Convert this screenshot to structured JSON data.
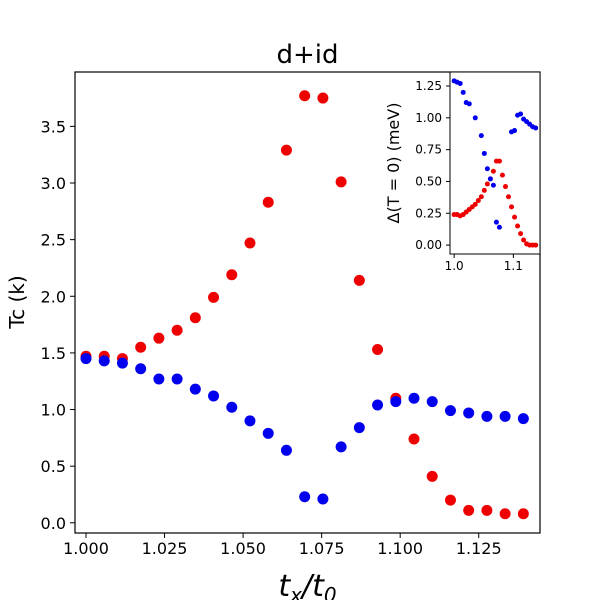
{
  "chart_data": [
    {
      "type": "scatter",
      "title": "d+id",
      "xlabel_main": "t",
      "xlabel_sub1": "x",
      "xlabel_sep": "/t",
      "xlabel_sub2": "0",
      "ylabel": "Tc (k)",
      "xlim": [
        0.9965,
        1.1445
      ],
      "ylim": [
        -0.09,
        3.98
      ],
      "xticks": [
        1.0,
        1.025,
        1.05,
        1.075,
        1.1,
        1.125
      ],
      "xtick_labels": [
        "1.000",
        "1.025",
        "1.050",
        "1.075",
        "1.100",
        "1.125"
      ],
      "yticks": [
        0.0,
        0.5,
        1.0,
        1.5,
        2.0,
        2.5,
        3.0,
        3.5
      ],
      "ytick_labels": [
        "0.0",
        "0.5",
        "1.0",
        "1.5",
        "2.0",
        "2.5",
        "3.0",
        "3.5"
      ],
      "series": [
        {
          "name": "red",
          "color": "#ee0000",
          "x": [
            1.0,
            1.0058,
            1.0116,
            1.0174,
            1.0232,
            1.029,
            1.0348,
            1.0406,
            1.0464,
            1.0522,
            1.058,
            1.0638,
            1.0696,
            1.0754,
            1.0812,
            1.087,
            1.0928,
            1.0986,
            1.1044,
            1.1102,
            1.116,
            1.1218,
            1.1276,
            1.1334,
            1.1392
          ],
          "y": [
            1.47,
            1.47,
            1.45,
            1.55,
            1.63,
            1.7,
            1.81,
            1.99,
            2.19,
            2.47,
            2.83,
            3.29,
            3.77,
            3.75,
            3.01,
            2.14,
            1.53,
            1.1,
            0.74,
            0.41,
            0.2,
            0.11,
            0.11,
            0.08,
            0.08
          ]
        },
        {
          "name": "blue",
          "color": "#0000ee",
          "x": [
            1.0,
            1.0058,
            1.0116,
            1.0174,
            1.0232,
            1.029,
            1.0348,
            1.0406,
            1.0464,
            1.0522,
            1.058,
            1.0638,
            1.0696,
            1.0754,
            1.0812,
            1.087,
            1.0928,
            1.0986,
            1.1044,
            1.1102,
            1.116,
            1.1218,
            1.1276,
            1.1334,
            1.1392
          ],
          "y": [
            1.45,
            1.43,
            1.41,
            1.36,
            1.27,
            1.27,
            1.18,
            1.12,
            1.02,
            0.9,
            0.79,
            0.64,
            0.23,
            0.21,
            0.67,
            0.84,
            1.04,
            1.07,
            1.1,
            1.07,
            0.99,
            0.97,
            0.94,
            0.94,
            0.92
          ]
        }
      ]
    },
    {
      "type": "scatter",
      "title": "",
      "ylabel": "Δ(T = 0) (meV)",
      "xlim": [
        0.993,
        1.145
      ],
      "ylim": [
        -0.07,
        1.36
      ],
      "xticks": [
        1.0,
        1.1
      ],
      "xtick_labels": [
        "1.0",
        "1.1"
      ],
      "yticks": [
        0.0,
        0.25,
        0.5,
        0.75,
        1.0,
        1.25
      ],
      "ytick_labels": [
        "0.00",
        "0.25",
        "0.50",
        "0.75",
        "1.00",
        "1.25"
      ],
      "series": [
        {
          "name": "red",
          "color": "#ee0000",
          "x": [
            1.0,
            1.0051,
            1.0102,
            1.0153,
            1.0204,
            1.0255,
            1.0306,
            1.0357,
            1.0408,
            1.0459,
            1.051,
            1.0561,
            1.0612,
            1.0663,
            1.0714,
            1.0765,
            1.0816,
            1.0867,
            1.0918,
            1.0969,
            1.102,
            1.1071,
            1.1122,
            1.1173,
            1.1224,
            1.1275,
            1.1326,
            1.1377
          ],
          "y": [
            0.24,
            0.24,
            0.23,
            0.24,
            0.26,
            0.28,
            0.3,
            0.32,
            0.35,
            0.38,
            0.43,
            0.48,
            0.52,
            0.58,
            0.66,
            0.66,
            0.55,
            0.46,
            0.38,
            0.3,
            0.22,
            0.15,
            0.09,
            0.04,
            0.01,
            0.0,
            0.0,
            0.0
          ]
        },
        {
          "name": "blue",
          "color": "#0000ee",
          "x": [
            1.0,
            1.0051,
            1.0102,
            1.0153,
            1.0204,
            1.0255,
            1.0357,
            1.0459,
            1.051,
            1.0561,
            1.0612,
            1.0663,
            1.0714,
            1.0765,
            1.0969,
            1.102,
            1.1071,
            1.1122,
            1.1173,
            1.1224,
            1.1275,
            1.1326,
            1.1377
          ],
          "y": [
            1.29,
            1.28,
            1.27,
            1.2,
            1.12,
            1.11,
            1.0,
            0.86,
            0.72,
            0.6,
            0.52,
            0.47,
            0.18,
            0.14,
            0.89,
            0.9,
            1.02,
            1.03,
            0.99,
            0.97,
            0.95,
            0.93,
            0.92
          ]
        }
      ]
    }
  ]
}
